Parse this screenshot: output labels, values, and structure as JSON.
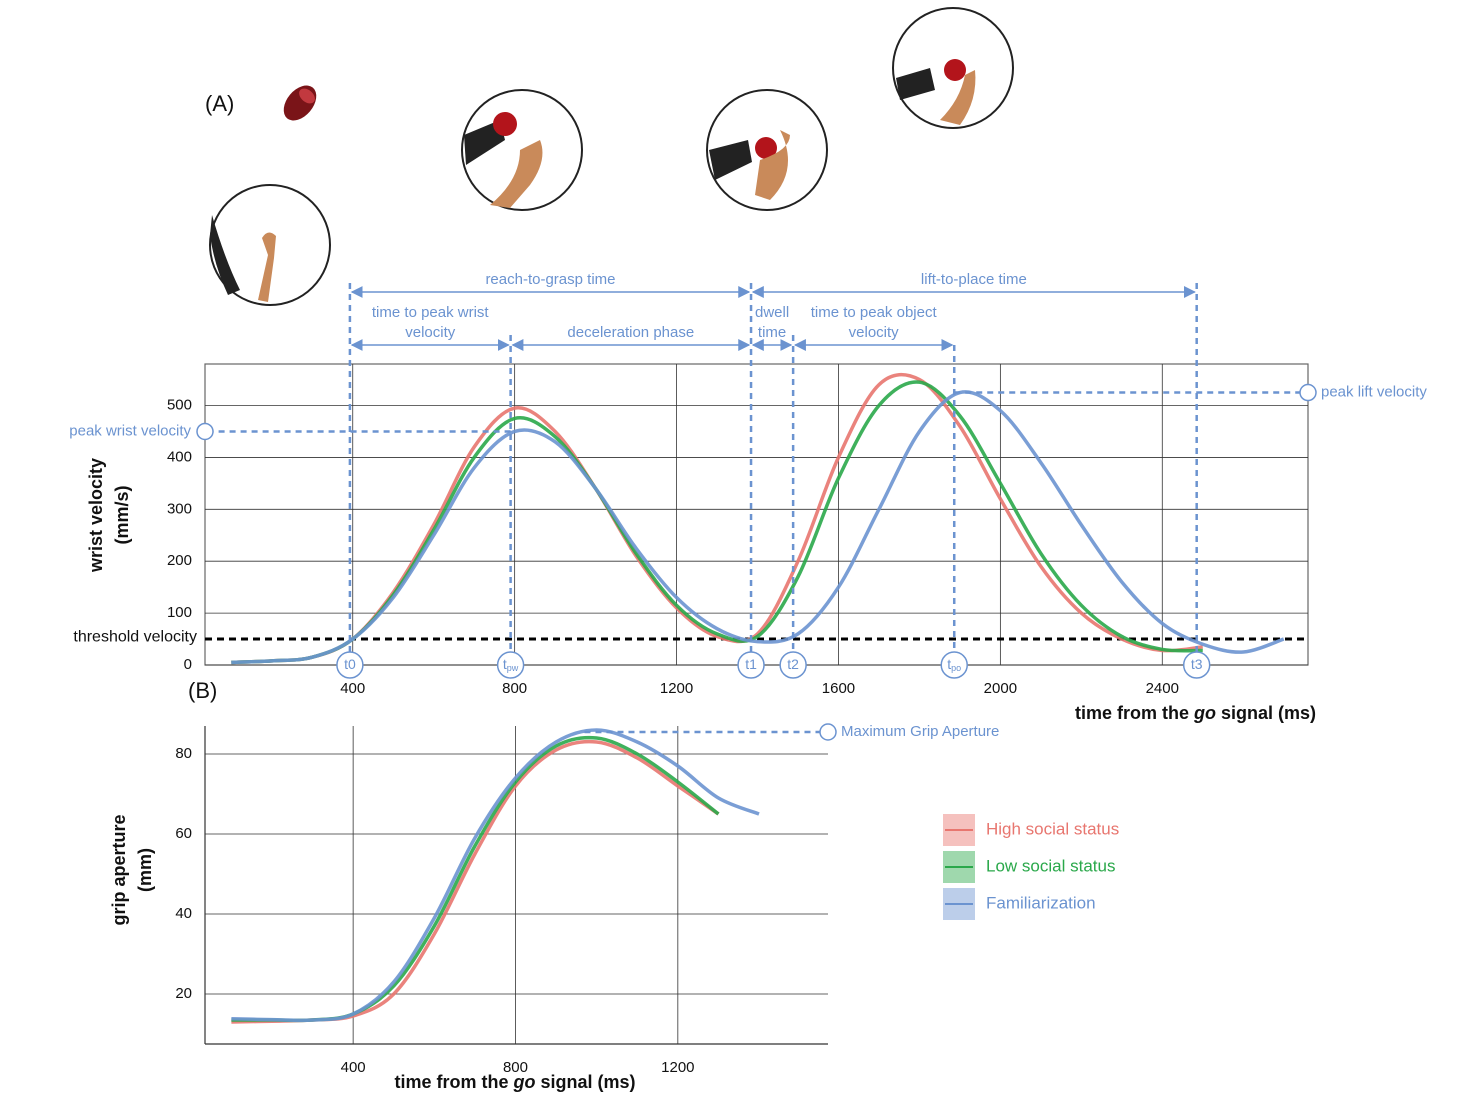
{
  "chart_data": [
    {
      "type": "line",
      "panel": "(A)",
      "xlabel": [
        "time from the ",
        "go",
        " signal (ms)"
      ],
      "ylabel": [
        "wrist velocity",
        "(mm/s)"
      ],
      "x": [
        100,
        200,
        300,
        400,
        500,
        600,
        700,
        800,
        900,
        1000,
        1100,
        1200,
        1300,
        1400,
        1500,
        1600,
        1700,
        1800,
        1900,
        2000,
        2100,
        2200,
        2300,
        2400,
        2500,
        2600,
        2700
      ],
      "series": [
        {
          "name": "High social status",
          "color": "#e8766f",
          "values": [
            5,
            8,
            15,
            50,
            140,
            270,
            420,
            495,
            450,
            340,
            210,
            110,
            55,
            60,
            200,
            400,
            540,
            550,
            460,
            320,
            190,
            100,
            50,
            28,
            35,
            null,
            null
          ]
        },
        {
          "name": "Low social status",
          "color": "#2aa84a",
          "values": [
            5,
            8,
            15,
            50,
            135,
            260,
            400,
            475,
            440,
            340,
            215,
            115,
            60,
            55,
            170,
            360,
            500,
            545,
            480,
            350,
            215,
            115,
            55,
            30,
            28,
            null,
            null
          ]
        },
        {
          "name": "Familiarization",
          "color": "#6b93d0",
          "values": [
            5,
            8,
            15,
            50,
            130,
            250,
            380,
            450,
            430,
            340,
            225,
            130,
            70,
            45,
            60,
            150,
            300,
            450,
            525,
            490,
            390,
            270,
            160,
            80,
            40,
            25,
            50
          ]
        }
      ],
      "xlim": [
        35,
        2760
      ],
      "ylim": [
        0,
        580
      ],
      "xticks": [
        400,
        800,
        1200,
        1600,
        2000,
        2400
      ],
      "yticks": [
        0,
        100,
        200,
        300,
        400,
        500
      ],
      "grid": true,
      "threshold": {
        "label": "threshold velocity",
        "value": 50
      },
      "events": [
        {
          "label": "t0",
          "x": 393
        },
        {
          "label": "t",
          "sub": "pw",
          "x": 790
        },
        {
          "label": "t1",
          "x": 1384
        },
        {
          "label": "t2",
          "x": 1488
        },
        {
          "label": "t",
          "sub": "po",
          "x": 1886
        },
        {
          "label": "t3",
          "x": 2485
        }
      ],
      "spans": [
        {
          "label": [
            "reach-to-grasp time"
          ]
        },
        {
          "label": [
            "time to peak wrist",
            "velocity"
          ]
        },
        {
          "label": [
            "deceleration phase"
          ]
        },
        {
          "label": [
            "dwell",
            "time"
          ]
        },
        {
          "label": [
            "time to peak object",
            "velocity"
          ]
        },
        {
          "label": [
            "lift-to-place time"
          ]
        }
      ],
      "annotations": [
        {
          "label": "peak wrist velocity",
          "x": 790,
          "y": 450
        },
        {
          "label": "peak lift velocity",
          "x": 1886,
          "y": 525
        }
      ]
    },
    {
      "type": "line",
      "panel": "(B)",
      "xlabel": [
        "time from the ",
        "go",
        " signal (ms)"
      ],
      "ylabel": [
        "grip aperture",
        "(mm)"
      ],
      "x": [
        100,
        200,
        300,
        400,
        500,
        600,
        700,
        800,
        900,
        1000,
        1100,
        1200,
        1300,
        1400
      ],
      "series": [
        {
          "name": "High social status",
          "color": "#e8766f",
          "values": [
            13,
            13.2,
            13.5,
            14.5,
            20,
            35,
            55,
            72,
            81,
            83,
            79,
            72,
            65,
            null
          ]
        },
        {
          "name": "Low social status",
          "color": "#2aa84a",
          "values": [
            13.5,
            13.5,
            13.5,
            15,
            22,
            37,
            57,
            73,
            82,
            84,
            80,
            73,
            65,
            null
          ]
        },
        {
          "name": "Familiarization",
          "color": "#6b93d0",
          "values": [
            13.8,
            13.6,
            13.5,
            15,
            23,
            39,
            59,
            74,
            83,
            86,
            83,
            77,
            69,
            65
          ]
        }
      ],
      "xlim": [
        35,
        1570
      ],
      "ylim": [
        7.5,
        87
      ],
      "xticks": [
        400,
        800,
        1200
      ],
      "yticks": [
        20,
        40,
        60,
        80
      ],
      "grid": true,
      "legend": "right",
      "annotations": [
        {
          "label": "Maximum Grip Aperture",
          "x": 970,
          "y": 85.5
        }
      ]
    }
  ]
}
